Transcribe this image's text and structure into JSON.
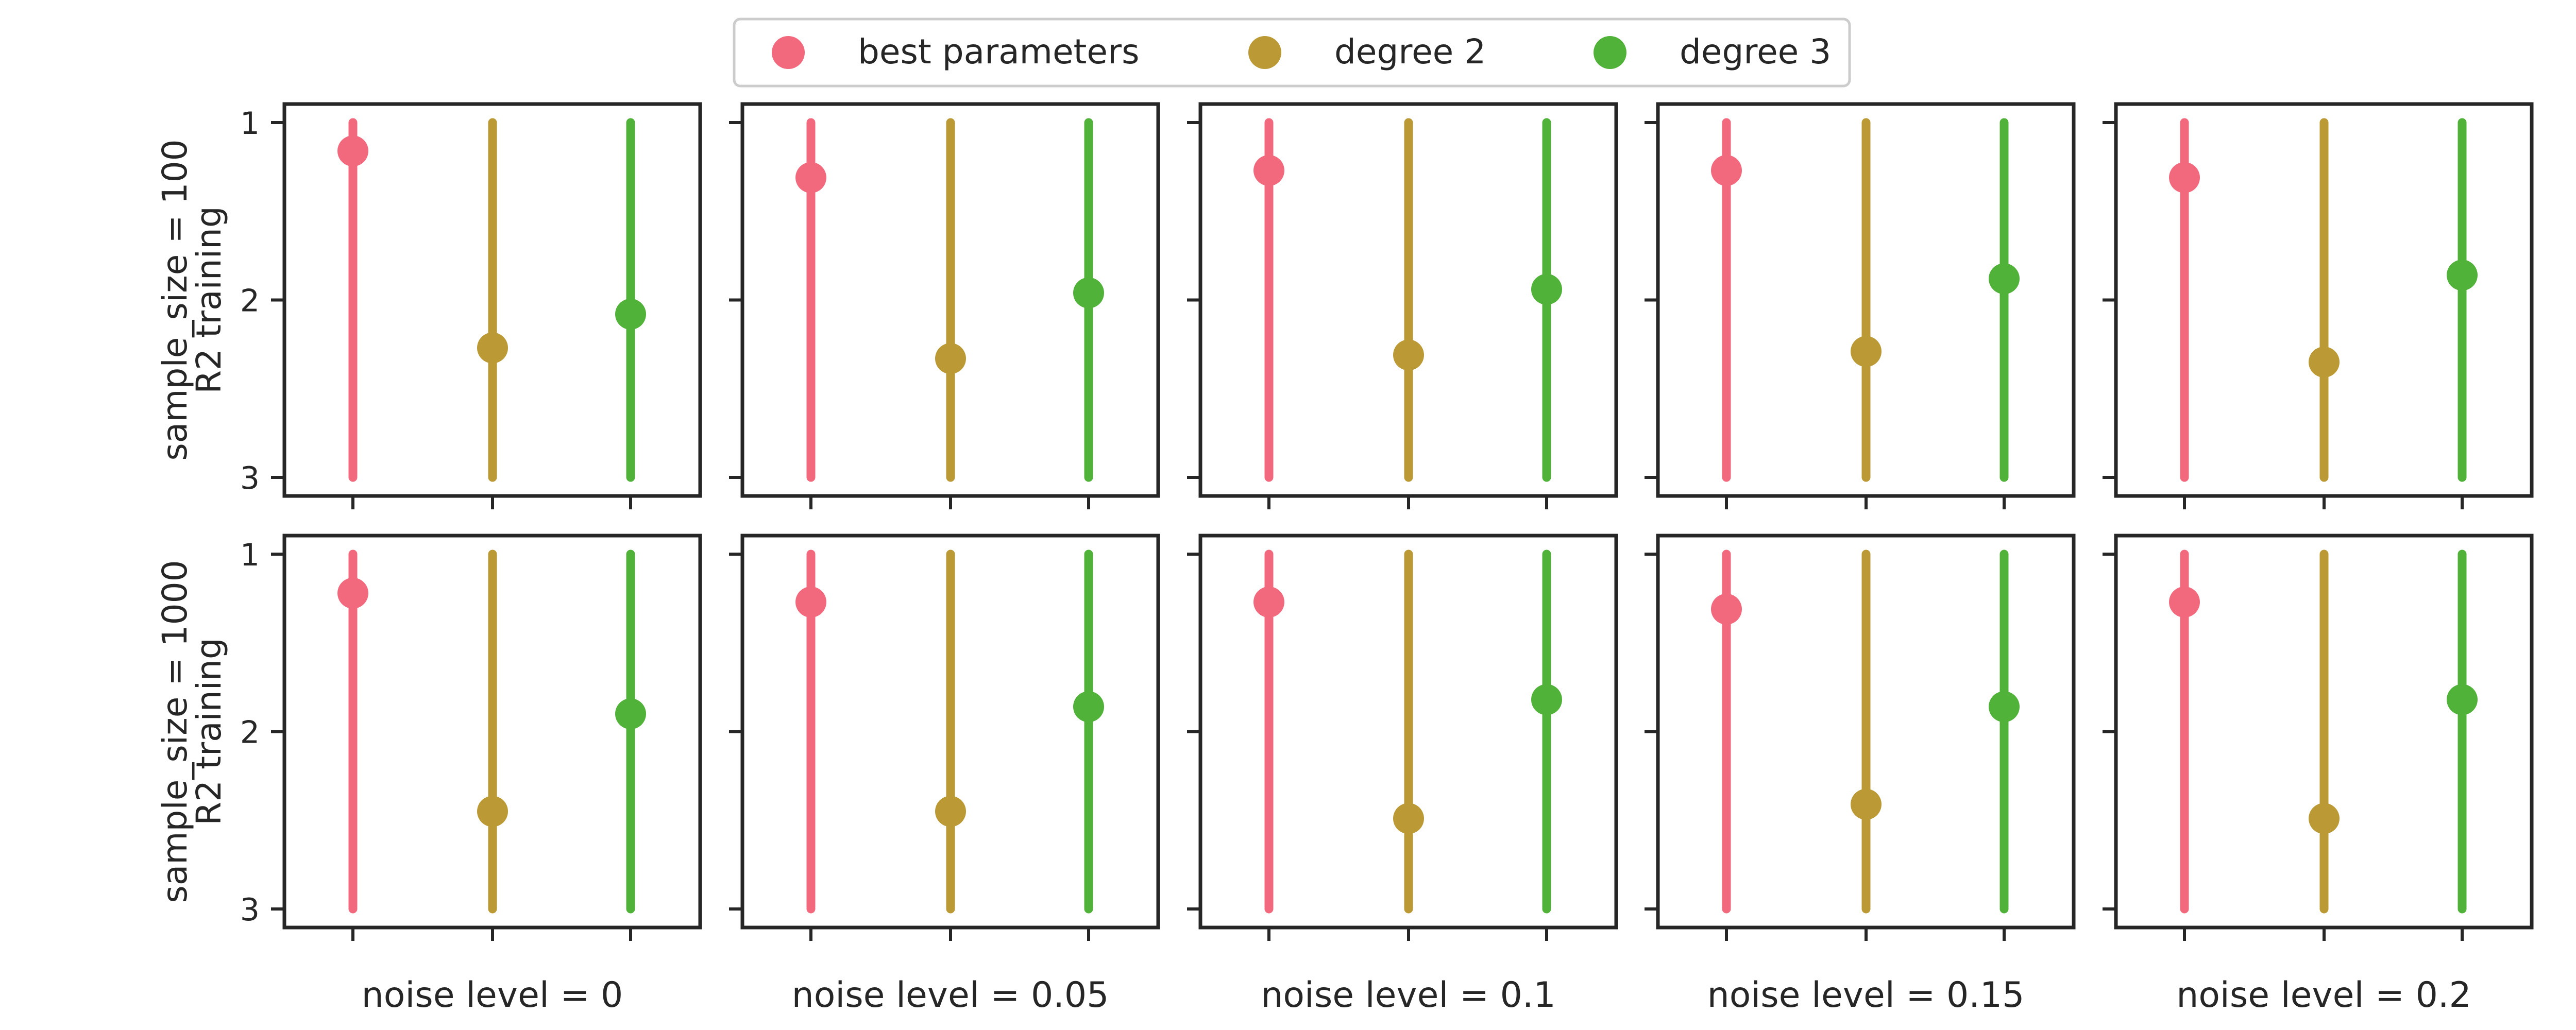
{
  "chart_data": {
    "type": "scatter",
    "style": "point-range",
    "legend": {
      "placement": "top-center",
      "entries": [
        "best parameters",
        "degree 2",
        "degree 3"
      ]
    },
    "colors": {
      "best parameters": "#f2697e",
      "degree 2": "#bb9a36",
      "degree 3": "#51b23a",
      "axes": "#262626"
    },
    "ylim": [
      1,
      3
    ],
    "y_inverted": true,
    "y_ticks": [
      "1",
      "2",
      "3"
    ],
    "grid": false,
    "row_labels": [
      [
        "sample_size = 100",
        "R2 training"
      ],
      [
        "sample_size = 1000",
        "R2 training"
      ]
    ],
    "column_labels": [
      "noise level = 0",
      "noise level = 0.05",
      "noise level = 0.1",
      "noise level = 0.15",
      "noise level = 0.2"
    ],
    "series_order": [
      "best parameters",
      "degree 2",
      "degree 3"
    ],
    "panels": [
      {
        "row": 0,
        "col": 0,
        "means": [
          1.16,
          2.27,
          2.08
        ],
        "ranges": [
          [
            1,
            3
          ],
          [
            1,
            3
          ],
          [
            1,
            3
          ]
        ]
      },
      {
        "row": 0,
        "col": 1,
        "means": [
          1.31,
          2.33,
          1.96
        ],
        "ranges": [
          [
            1,
            3
          ],
          [
            1,
            3
          ],
          [
            1,
            3
          ]
        ]
      },
      {
        "row": 0,
        "col": 2,
        "means": [
          1.27,
          2.31,
          1.94
        ],
        "ranges": [
          [
            1,
            3
          ],
          [
            1,
            3
          ],
          [
            1,
            3
          ]
        ]
      },
      {
        "row": 0,
        "col": 3,
        "means": [
          1.27,
          2.29,
          1.88
        ],
        "ranges": [
          [
            1,
            3
          ],
          [
            1,
            3
          ],
          [
            1,
            3
          ]
        ]
      },
      {
        "row": 0,
        "col": 4,
        "means": [
          1.31,
          2.35,
          1.86
        ],
        "ranges": [
          [
            1,
            3
          ],
          [
            1,
            3
          ],
          [
            1,
            3
          ]
        ]
      },
      {
        "row": 1,
        "col": 0,
        "means": [
          1.22,
          2.45,
          1.9
        ],
        "ranges": [
          [
            1,
            3
          ],
          [
            1,
            3
          ],
          [
            1,
            3
          ]
        ]
      },
      {
        "row": 1,
        "col": 1,
        "means": [
          1.27,
          2.45,
          1.86
        ],
        "ranges": [
          [
            1,
            3
          ],
          [
            1,
            3
          ],
          [
            1,
            3
          ]
        ]
      },
      {
        "row": 1,
        "col": 2,
        "means": [
          1.27,
          2.49,
          1.82
        ],
        "ranges": [
          [
            1,
            3
          ],
          [
            1,
            3
          ],
          [
            1,
            3
          ]
        ]
      },
      {
        "row": 1,
        "col": 3,
        "means": [
          1.31,
          2.41,
          1.86
        ],
        "ranges": [
          [
            1,
            3
          ],
          [
            1,
            3
          ],
          [
            1,
            3
          ]
        ]
      },
      {
        "row": 1,
        "col": 4,
        "means": [
          1.27,
          2.49,
          1.82
        ],
        "ranges": [
          [
            1,
            3
          ],
          [
            1,
            3
          ],
          [
            1,
            3
          ]
        ]
      }
    ]
  }
}
